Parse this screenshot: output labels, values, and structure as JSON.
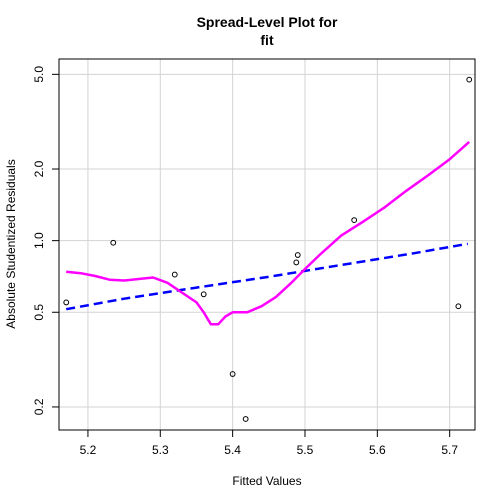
{
  "chart_data": {
    "type": "scatter",
    "title": "Spread-Level Plot for",
    "subtitle": "fit",
    "xlabel": "Fitted Values",
    "ylabel": "Absolute Studentized Residuals",
    "xlim": [
      5.16,
      5.735
    ],
    "ylim": [
      0.16,
      5.8
    ],
    "y_scale": "log",
    "grid": true,
    "x_ticks": [
      5.2,
      5.3,
      5.4,
      5.5,
      5.6,
      5.7
    ],
    "x_tick_labels": [
      "5.2",
      "5.3",
      "5.4",
      "5.5",
      "5.6",
      "5.7"
    ],
    "y_ticks": [
      0.2,
      0.5,
      1.0,
      2.0,
      5.0
    ],
    "y_tick_labels": [
      "0.2",
      "0.5",
      "1.0",
      "2.0",
      "5.0"
    ],
    "points": [
      {
        "x": 5.17,
        "y": 0.55
      },
      {
        "x": 5.235,
        "y": 0.98
      },
      {
        "x": 5.32,
        "y": 0.72
      },
      {
        "x": 5.36,
        "y": 0.595
      },
      {
        "x": 5.4,
        "y": 0.275
      },
      {
        "x": 5.418,
        "y": 0.178
      },
      {
        "x": 5.488,
        "y": 0.81
      },
      {
        "x": 5.49,
        "y": 0.87
      },
      {
        "x": 5.568,
        "y": 1.22
      },
      {
        "x": 5.712,
        "y": 0.53
      },
      {
        "x": 5.727,
        "y": 4.75
      }
    ],
    "series": [
      {
        "style": "dashed",
        "color": "#0000ff",
        "x": [
          5.17,
          5.25,
          5.35,
          5.45,
          5.55,
          5.65,
          5.725
        ],
        "y": [
          0.515,
          0.57,
          0.635,
          0.705,
          0.79,
          0.885,
          0.97
        ]
      },
      {
        "style": "solid",
        "color": "#ff00ff",
        "x": [
          5.17,
          5.19,
          5.21,
          5.23,
          5.25,
          5.27,
          5.29,
          5.31,
          5.33,
          5.35,
          5.36,
          5.37,
          5.38,
          5.39,
          5.4,
          5.42,
          5.44,
          5.46,
          5.48,
          5.5,
          5.52,
          5.55,
          5.58,
          5.61,
          5.64,
          5.67,
          5.7,
          5.727
        ],
        "y": [
          0.74,
          0.73,
          0.71,
          0.685,
          0.68,
          0.69,
          0.7,
          0.665,
          0.605,
          0.55,
          0.5,
          0.445,
          0.445,
          0.48,
          0.5,
          0.5,
          0.53,
          0.58,
          0.66,
          0.76,
          0.87,
          1.05,
          1.2,
          1.38,
          1.62,
          1.88,
          2.2,
          2.6
        ]
      }
    ]
  }
}
